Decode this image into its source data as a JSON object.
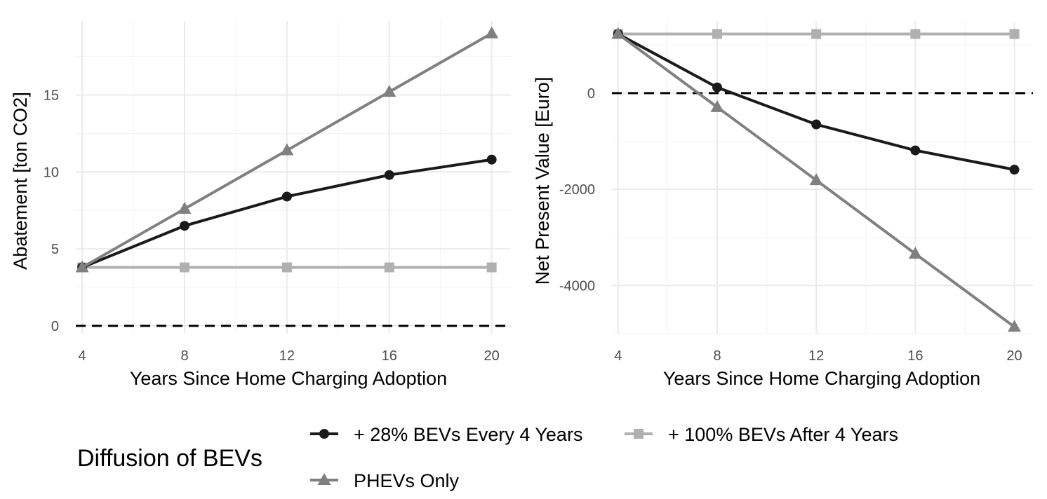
{
  "charts": [
    {
      "id": "abatement",
      "type": "line",
      "xlabel": "Years Since Home Charging Adoption",
      "ylabel": "Abatement [ton CO2]",
      "xlim": [
        3.75,
        20.75
      ],
      "ylim": [
        -0.5,
        19.8
      ],
      "xticks": [
        4,
        8,
        12,
        16,
        20
      ],
      "xtick_labels": [
        "4",
        "8",
        "12",
        "16",
        "20"
      ],
      "yticks": [
        0,
        5,
        10,
        15
      ],
      "ytick_labels": [
        "0",
        "5",
        "10",
        "15"
      ],
      "yminor": [
        2.5,
        7.5,
        12.5,
        17.5
      ],
      "xminor": [
        6,
        10,
        14,
        18
      ],
      "ref_line": 0,
      "series": [
        {
          "key": "bev28",
          "x": [
            4,
            8,
            12,
            16,
            20
          ],
          "y": [
            3.8,
            6.5,
            8.4,
            9.8,
            10.8
          ]
        },
        {
          "key": "bev100",
          "x": [
            4,
            8,
            12,
            16,
            20
          ],
          "y": [
            3.8,
            3.8,
            3.8,
            3.8,
            3.8
          ]
        },
        {
          "key": "phev",
          "x": [
            4,
            8,
            12,
            16,
            20
          ],
          "y": [
            3.8,
            7.6,
            11.4,
            15.2,
            19.0
          ]
        }
      ]
    },
    {
      "id": "npv",
      "type": "line",
      "xlabel": "Years Since Home Charging Adoption",
      "ylabel": "Net Present Value [Euro]",
      "xlim": [
        3.75,
        20.75
      ],
      "ylim": [
        -5000,
        1500
      ],
      "xticks": [
        4,
        8,
        12,
        16,
        20
      ],
      "xtick_labels": [
        "4",
        "8",
        "12",
        "16",
        "20"
      ],
      "yticks": [
        -4000,
        -2000,
        0
      ],
      "ytick_labels": [
        "-4000",
        "-2000",
        "0"
      ],
      "yminor": [
        -5000,
        -3000,
        -1000,
        1000
      ],
      "xminor": [
        6,
        10,
        14,
        18
      ],
      "ref_line": 0,
      "series": [
        {
          "key": "bev28",
          "x": [
            4,
            8,
            12,
            16,
            20
          ],
          "y": [
            1230,
            120,
            -650,
            -1190,
            -1590
          ]
        },
        {
          "key": "bev100",
          "x": [
            4,
            8,
            12,
            16,
            20
          ],
          "y": [
            1230,
            1230,
            1230,
            1230,
            1230
          ]
        },
        {
          "key": "phev",
          "x": [
            4,
            8,
            12,
            16,
            20
          ],
          "y": [
            1230,
            -290,
            -1810,
            -3340,
            -4860
          ]
        }
      ]
    }
  ],
  "legend": {
    "title": "Diffusion of BEVs",
    "items": [
      {
        "key": "bev28",
        "label": "+ 28% BEVs Every 4 Years",
        "color": "#1a1a1a",
        "marker": "circle"
      },
      {
        "key": "bev100",
        "label": "+ 100% BEVs After 4 Years",
        "color": "#b0b0b0",
        "marker": "square"
      },
      {
        "key": "phev",
        "label": "PHEVs Only",
        "color": "#808080",
        "marker": "triangle"
      }
    ]
  },
  "colors": {
    "grid_major": "#ebebeb",
    "grid_minor": "#f5f5f5",
    "ref_line": "#000000"
  }
}
